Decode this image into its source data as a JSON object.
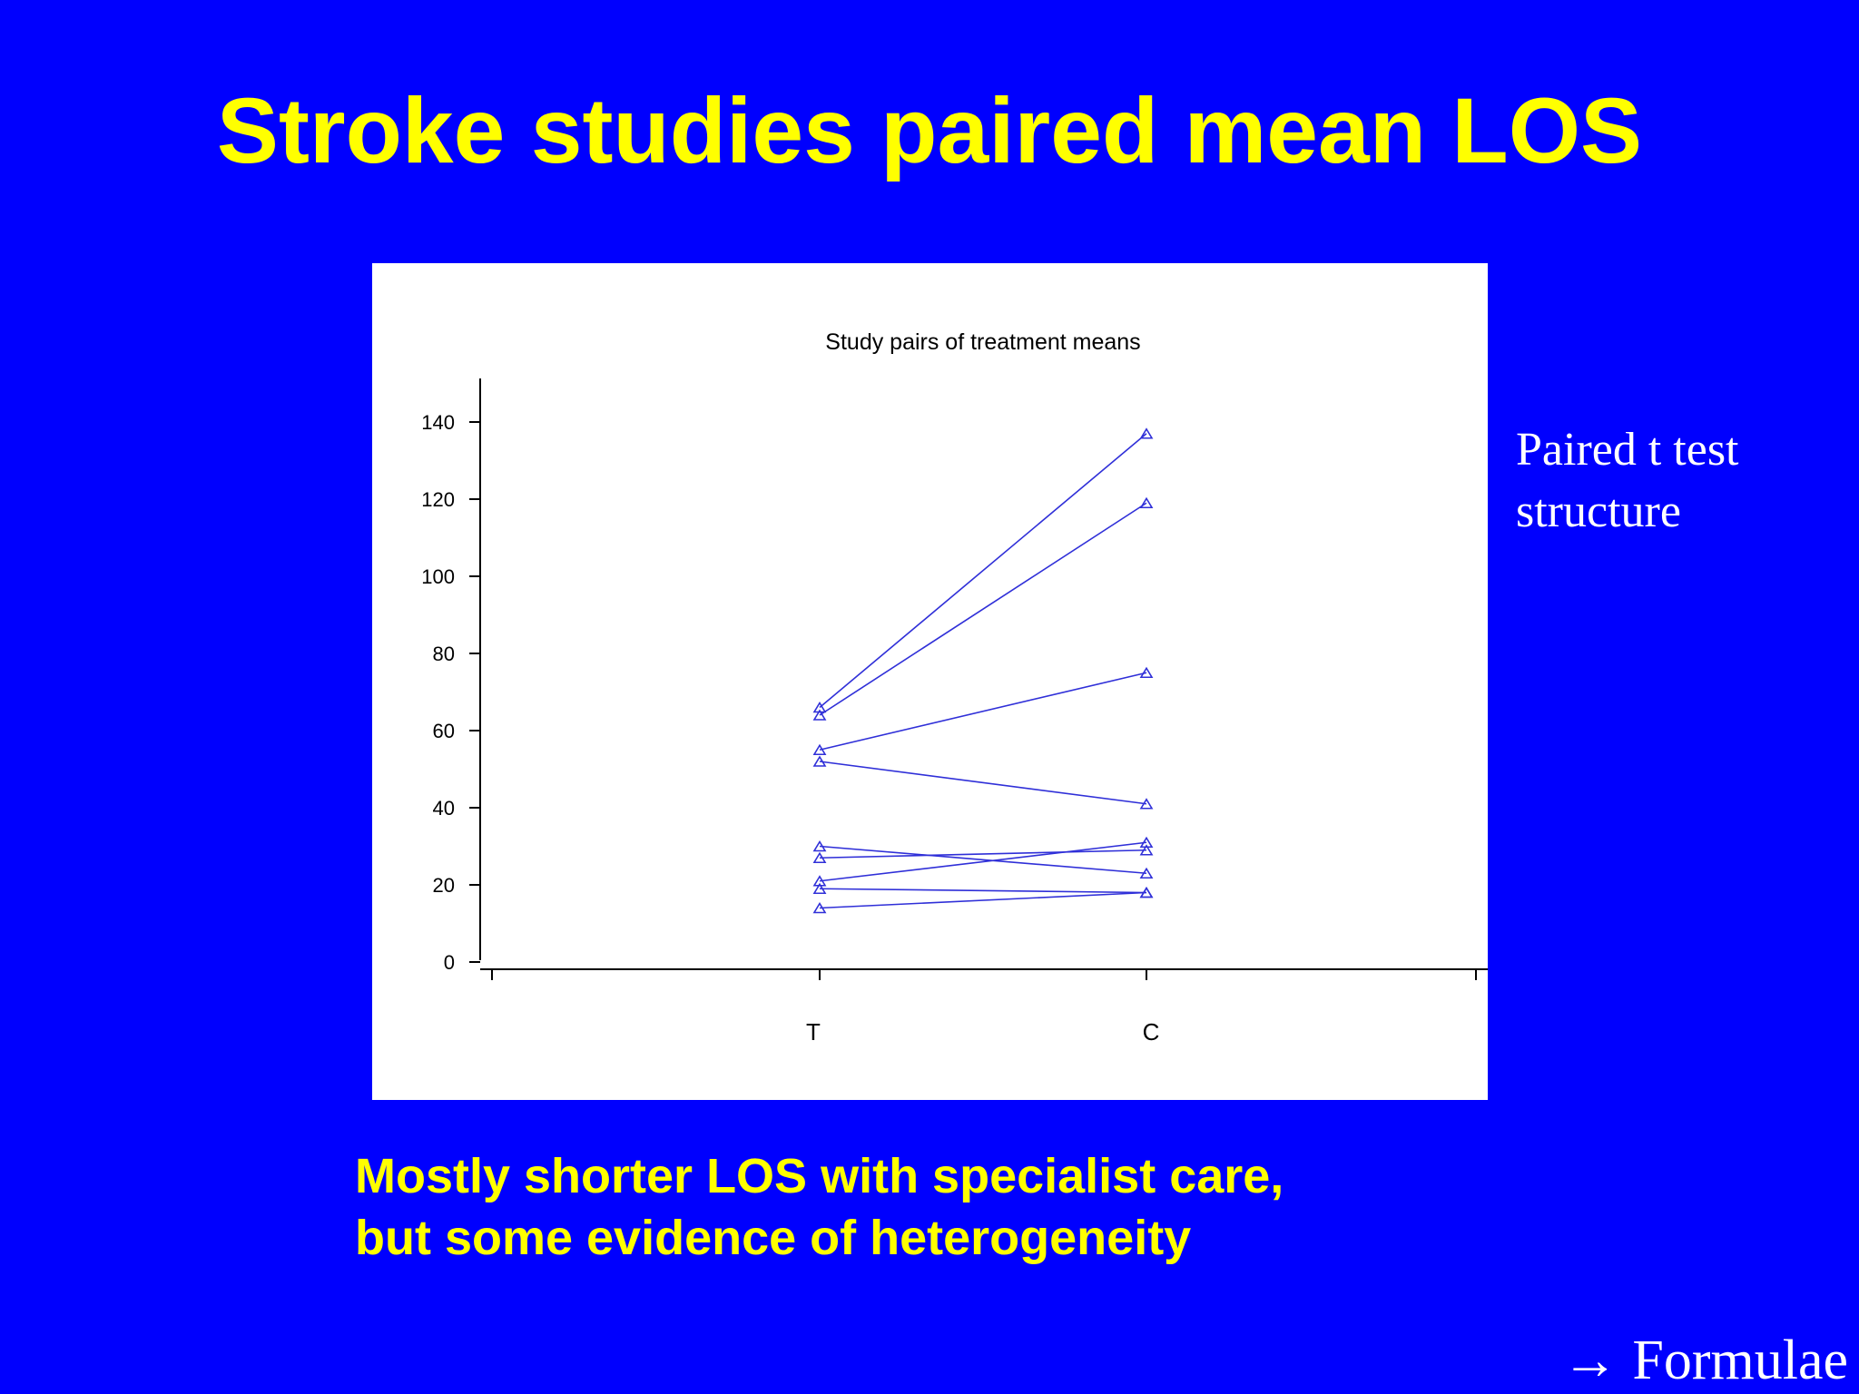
{
  "slide": {
    "title": "Stroke studies paired mean LOS",
    "side_note": [
      "Paired t test",
      "structure"
    ],
    "conclusion": [
      "Mostly shorter LOS with specialist care,",
      "but some evidence of heterogeneity"
    ],
    "nav_link": "→ Formulae"
  },
  "colors": {
    "background": "#0000fe",
    "title": "#ffff00",
    "side_text": "#ffffff",
    "series": "#2f2fd8"
  },
  "chart_data": {
    "type": "line",
    "title": "Study pairs of treatment means",
    "xlabel": "",
    "ylabel": "",
    "categories": [
      "T",
      "C"
    ],
    "ylim": [
      0,
      150
    ],
    "yticks": [
      0,
      20,
      40,
      60,
      80,
      100,
      120,
      140
    ],
    "grid": false,
    "marker": "triangle",
    "pairs": [
      {
        "values": [
          66,
          137
        ]
      },
      {
        "values": [
          64,
          119
        ]
      },
      {
        "values": [
          55,
          75
        ]
      },
      {
        "values": [
          52,
          41
        ]
      },
      {
        "values": [
          30,
          23
        ]
      },
      {
        "values": [
          27,
          29
        ]
      },
      {
        "values": [
          21,
          31
        ]
      },
      {
        "values": [
          19,
          18
        ]
      },
      {
        "values": [
          14,
          18
        ]
      }
    ]
  }
}
